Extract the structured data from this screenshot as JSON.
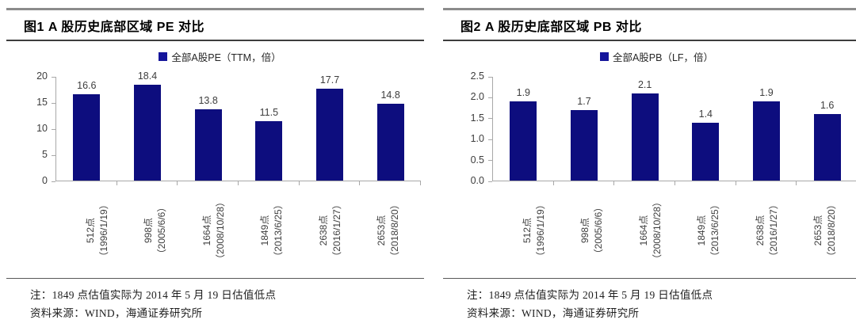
{
  "panels": [
    {
      "title": "图1  A 股历史底部区域 PE 对比",
      "note_line1": "注：1849 点估值实际为 2014 年 5 月 19 日估值低点",
      "note_line2": "资料来源：WIND，海通证券研究所"
    },
    {
      "title": "图2  A 股历史底部区域 PB 对比",
      "note_line1": "注：1849 点估值实际为 2014 年 5 月 19 日估值低点",
      "note_line2": "资料来源：WIND，海通证券研究所"
    }
  ],
  "chart_data": [
    {
      "type": "bar",
      "title": "图1 A股历史底部区域PE对比",
      "legend": "全部A股PE（TTM，倍）",
      "legend_position": "top",
      "categories": [
        "512点\n（1996/1/19）",
        "998点\n（2005/6/6）",
        "1664点\n（2008/10/28）",
        "1849点\n（2013/6/25）",
        "2638点\n（2016/1/27）",
        "2653点\n（2018/8/20）"
      ],
      "values": [
        16.6,
        18.4,
        13.8,
        11.5,
        17.7,
        14.8
      ],
      "ylim": [
        0,
        20
      ],
      "ytick_labels": [
        "0",
        "5",
        "10",
        "15",
        "20"
      ],
      "grid": false,
      "bar_color": "#0d0d7e"
    },
    {
      "type": "bar",
      "title": "图2 A股历史底部区域PB对比",
      "legend": "全部A股PB（LF，倍）",
      "legend_position": "top",
      "categories": [
        "512点\n（1996/1/19）",
        "998点\n（2005/6/6）",
        "1664点\n（2008/10/28）",
        "1849点\n（2013/6/25）",
        "2638点\n（2016/1/27）",
        "2653点\n（2018/8/20）"
      ],
      "values": [
        1.9,
        1.7,
        2.1,
        1.4,
        1.9,
        1.6
      ],
      "ylim": [
        0,
        2.5
      ],
      "ytick_labels": [
        "0.0",
        "0.5",
        "1.0",
        "1.5",
        "2.0",
        "2.5"
      ],
      "grid": false,
      "bar_color": "#0d0d7e"
    }
  ]
}
